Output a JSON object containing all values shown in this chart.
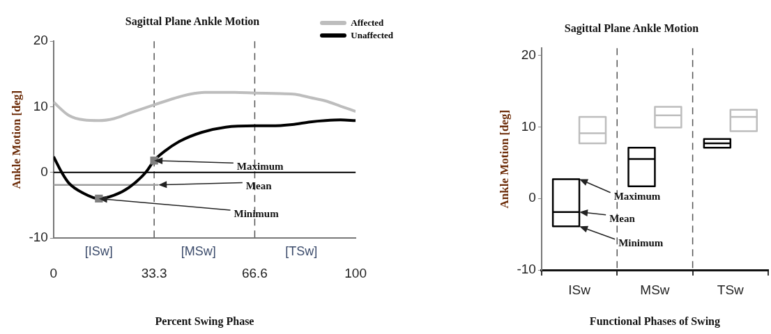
{
  "chart_data": [
    {
      "type": "line",
      "title": "Sagittal Plane Ankle Motion",
      "xlabel": "Percent Swing Phase",
      "ylabel": "Ankle Motion [deg]",
      "xlim": [
        0,
        100
      ],
      "xticks": [
        0,
        33.3,
        66.6,
        100
      ],
      "ylim": [
        -10,
        20
      ],
      "yticks": [
        -10,
        0,
        10,
        20
      ],
      "grid": false,
      "legend": "top right",
      "series": [
        {
          "name": "Affected",
          "color": "#bdbdbd",
          "x": [
            0,
            5,
            10,
            15,
            20,
            25,
            33.3,
            40,
            45,
            50,
            60,
            66.6,
            75,
            80,
            85,
            90,
            95,
            100
          ],
          "values": [
            10.7,
            8.7,
            8.0,
            7.9,
            8.2,
            9.0,
            10.3,
            11.3,
            11.9,
            12.2,
            12.2,
            12.1,
            12.0,
            11.9,
            11.4,
            10.9,
            10.1,
            9.3
          ]
        },
        {
          "name": "Unaffected",
          "color": "#000000",
          "x": [
            0,
            2.7,
            5,
            10,
            15,
            20,
            25,
            30.5,
            33.3,
            37,
            42,
            49,
            57,
            66.6,
            72,
            79,
            85,
            90,
            95,
            100
          ],
          "values": [
            2.4,
            0,
            -1.6,
            -3.2,
            -4.0,
            -3.5,
            -2.3,
            0,
            1.8,
            3.3,
            4.8,
            6.1,
            6.9,
            7.1,
            7.1,
            7.3,
            7.7,
            7.9,
            8.0,
            7.9
          ]
        },
        {
          "type": "line",
          "color": "#9e9e9e",
          "x": [
            0,
            34.7
          ],
          "values": [
            -1.9,
            -1.9
          ]
        },
        {
          "type": "scatter",
          "marker": "square",
          "color": "#808080",
          "x": [
            33.3,
            15
          ],
          "values": [
            1.8,
            -4.0
          ]
        }
      ],
      "ref_lines": [
        {
          "axis": "x",
          "value": 33.3,
          "color": "#555555",
          "line_style": "dashed"
        },
        {
          "axis": "x",
          "value": 66.6,
          "color": "#555555",
          "line_style": "dashed"
        },
        {
          "axis": "y",
          "value": 0,
          "color": "#000000",
          "line_style": "solid"
        }
      ],
      "annotations": [
        {
          "text": "Maximum",
          "x": 33.3,
          "y": 1.8
        },
        {
          "text": "Mean",
          "x": 34.7,
          "y": -1.9
        },
        {
          "text": "Minimum",
          "x": 15,
          "y": -4.0
        },
        "[ISw]",
        "[MSw]",
        "[TSw]"
      ]
    },
    {
      "type": "box",
      "title": "Sagittal Plane Ankle Motion",
      "xlabel": "Functional Phases of Swing",
      "ylabel": "Ankle Motion [deg]",
      "categories": [
        "ISw",
        "MSw",
        "TSw"
      ],
      "ylim": [
        -10,
        21
      ],
      "yticks": [
        -10,
        0,
        10,
        20
      ],
      "grid": false,
      "series": [
        {
          "color": "#000000",
          "boxes": [
            {
              "low": -3.9,
              "q1": -3.9,
              "median": -1.9,
              "q3": 2.7,
              "high": 2.7
            },
            {
              "low": 1.7,
              "q1": 1.7,
              "median": 5.5,
              "q3": 7.1,
              "high": 7.1
            },
            {
              "low": 7.1,
              "q1": 7.1,
              "median": 7.7,
              "q3": 8.3,
              "high": 8.3
            }
          ]
        },
        {
          "color": "#bdbdbd",
          "boxes": [
            {
              "low": 7.7,
              "q1": 7.7,
              "median": 9.1,
              "q3": 11.4,
              "high": 11.4
            },
            {
              "low": 9.9,
              "q1": 9.9,
              "median": 11.6,
              "q3": 12.8,
              "high": 12.8
            },
            {
              "low": 9.4,
              "q1": 9.4,
              "median": 11.4,
              "q3": 12.4,
              "high": 12.4
            }
          ]
        }
      ],
      "annotations": [
        {
          "text": "Maximum",
          "x": "ISw",
          "y": 2.7
        },
        {
          "text": "Mean",
          "x": "ISw",
          "y": -1.9
        },
        {
          "text": "Minimum",
          "x": "ISw",
          "y": -3.9
        }
      ]
    }
  ]
}
